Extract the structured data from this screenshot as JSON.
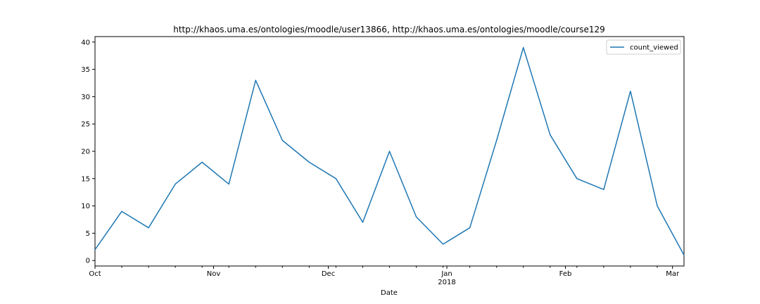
{
  "chart_data": {
    "type": "line",
    "title": "http://khaos.uma.es/ontologies/moodle/user13866, http://khaos.uma.es/ontologies/moodle/course129",
    "xlabel": "Date",
    "ylabel": "",
    "x_ticks": [
      {
        "label": "Oct",
        "sublabel": "",
        "date": "2017-10-01"
      },
      {
        "label": "Nov",
        "sublabel": "",
        "date": "2017-11-01"
      },
      {
        "label": "Dec",
        "sublabel": "",
        "date": "2017-12-01"
      },
      {
        "label": "Jan",
        "sublabel": "2018",
        "date": "2018-01-01"
      },
      {
        "label": "Feb",
        "sublabel": "",
        "date": "2018-02-01"
      },
      {
        "label": "Mar",
        "sublabel": "",
        "date": "2018-03-01"
      }
    ],
    "y_ticks": [
      0,
      5,
      10,
      15,
      20,
      25,
      30,
      35,
      40
    ],
    "xlim": [
      "2017-10-01",
      "2018-03-04"
    ],
    "ylim": [
      -1,
      41
    ],
    "grid": false,
    "legend_position": "top-right",
    "series": [
      {
        "name": "count_viewed",
        "color": "#1f77b4",
        "points": [
          {
            "x": "2017-10-01",
            "y": 2
          },
          {
            "x": "2017-10-08",
            "y": 9
          },
          {
            "x": "2017-10-15",
            "y": 6
          },
          {
            "x": "2017-10-22",
            "y": 14
          },
          {
            "x": "2017-10-29",
            "y": 18
          },
          {
            "x": "2017-11-05",
            "y": 14
          },
          {
            "x": "2017-11-12",
            "y": 33
          },
          {
            "x": "2017-11-19",
            "y": 22
          },
          {
            "x": "2017-11-26",
            "y": 18
          },
          {
            "x": "2017-12-03",
            "y": 15
          },
          {
            "x": "2017-12-10",
            "y": 7
          },
          {
            "x": "2017-12-17",
            "y": 20
          },
          {
            "x": "2017-12-24",
            "y": 8
          },
          {
            "x": "2017-12-31",
            "y": 3
          },
          {
            "x": "2018-01-07",
            "y": 6
          },
          {
            "x": "2018-01-14",
            "y": 22
          },
          {
            "x": "2018-01-21",
            "y": 39
          },
          {
            "x": "2018-01-28",
            "y": 23
          },
          {
            "x": "2018-02-04",
            "y": 15
          },
          {
            "x": "2018-02-11",
            "y": 13
          },
          {
            "x": "2018-02-18",
            "y": 31
          },
          {
            "x": "2018-02-25",
            "y": 10
          },
          {
            "x": "2018-03-04",
            "y": 1
          }
        ]
      }
    ]
  }
}
